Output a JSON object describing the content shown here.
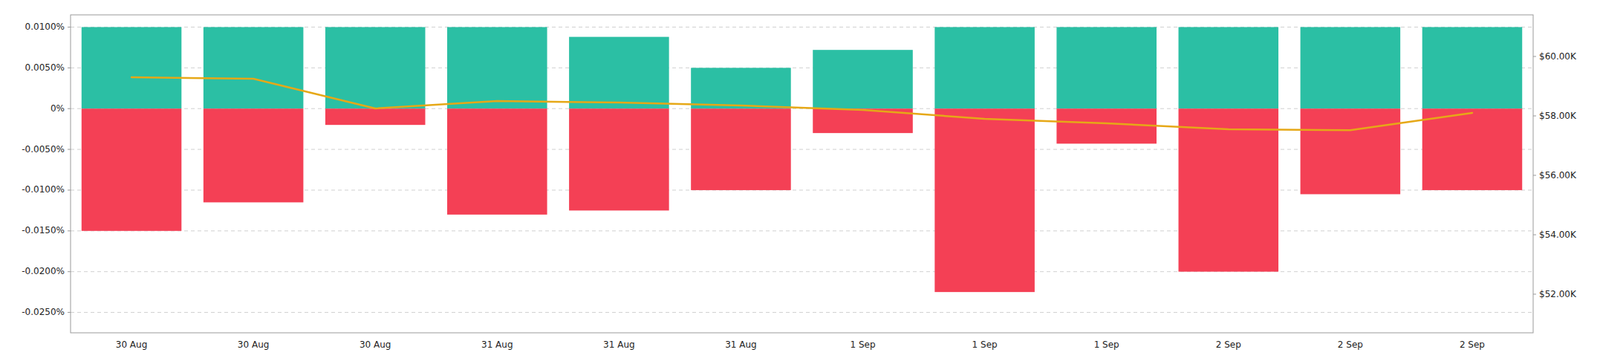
{
  "chart_data": {
    "type": "bar",
    "categories": [
      "30 Aug",
      "30 Aug",
      "30 Aug",
      "31 Aug",
      "31 Aug",
      "31 Aug",
      "1 Sep",
      "1 Sep",
      "1 Sep",
      "2 Sep",
      "2 Sep",
      "2 Sep"
    ],
    "stacked": true,
    "grid": true,
    "series": [
      {
        "type": "bar",
        "color": "#2bbfa4",
        "values": [
          0.01,
          0.01,
          0.01,
          0.01,
          0.0088,
          0.005,
          0.0072,
          0.01,
          0.01,
          0.01,
          0.01,
          0.01
        ]
      },
      {
        "type": "bar",
        "color": "#f44055",
        "values": [
          -0.015,
          -0.0115,
          -0.002,
          -0.013,
          -0.0125,
          -0.01,
          -0.003,
          -0.0225,
          -0.0043,
          -0.02,
          -0.0105,
          -0.01
        ]
      },
      {
        "type": "line",
        "axis": "y2",
        "color": "#e6a817",
        "values": [
          59300,
          59250,
          58250,
          58500,
          58450,
          58350,
          58200,
          57900,
          57750,
          57550,
          57520,
          58100
        ]
      }
    ],
    "ylim": [
      -0.0275,
      0.0115
    ],
    "yticks": [
      {
        "value": 0.01,
        "label": "0.0100%"
      },
      {
        "value": 0.005,
        "label": "0.0050%"
      },
      {
        "value": 0.0,
        "label": "0%"
      },
      {
        "value": -0.005,
        "label": "-0.0050%"
      },
      {
        "value": -0.01,
        "label": "-0.0100%"
      },
      {
        "value": -0.015,
        "label": "-0.0150%"
      },
      {
        "value": -0.02,
        "label": "-0.0200%"
      },
      {
        "value": -0.025,
        "label": "-0.0250%"
      }
    ],
    "y2lim": [
      50700,
      61400
    ],
    "y2ticks": [
      {
        "value": 60000,
        "label": "$60.00K"
      },
      {
        "value": 58000,
        "label": "$58.00K"
      },
      {
        "value": 56000,
        "label": "$56.00K"
      },
      {
        "value": 54000,
        "label": "$54.00K"
      },
      {
        "value": 52000,
        "label": "$52.00K"
      }
    ]
  }
}
